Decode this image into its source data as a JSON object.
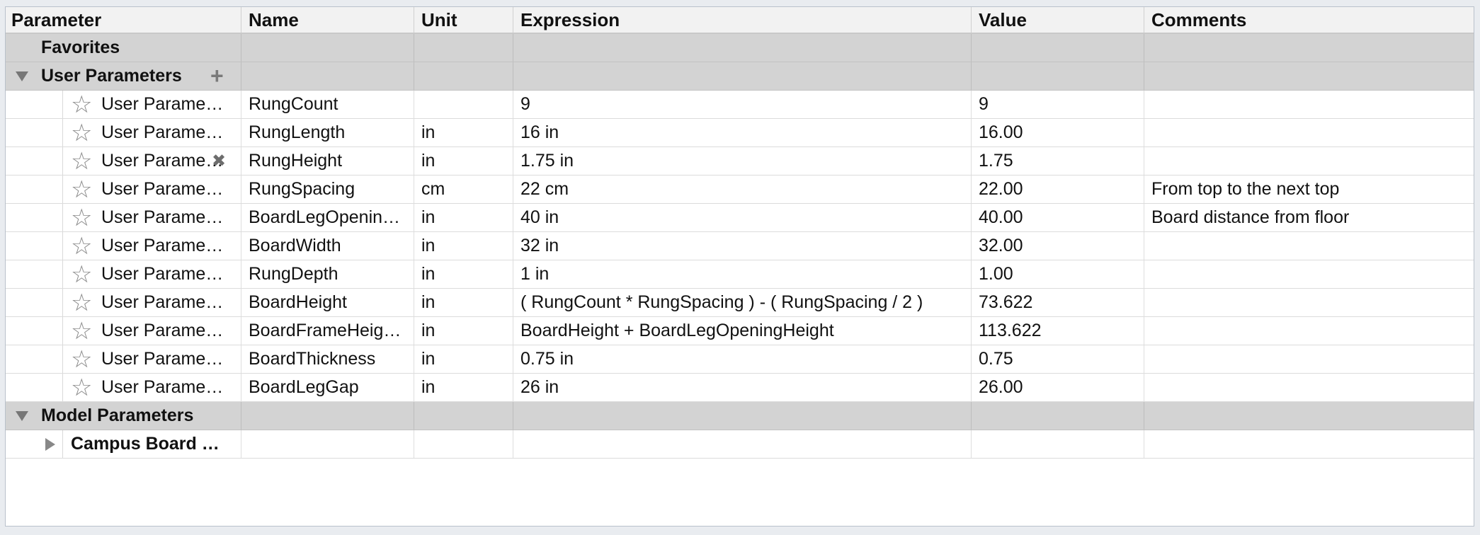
{
  "columns": {
    "parameter": "Parameter",
    "name": "Name",
    "unit": "Unit",
    "expression": "Expression",
    "value": "Value",
    "comments": "Comments"
  },
  "groups": {
    "favorites": "Favorites",
    "user_parameters": "User Parameters",
    "model_parameters": "Model Parameters"
  },
  "icons": {
    "add": "+",
    "star": "☆",
    "delete": "✖"
  },
  "rows": [
    {
      "param": "User Parame…",
      "name": "RungCount",
      "unit": "",
      "expression": "9",
      "value": "9",
      "comments": ""
    },
    {
      "param": "User Parame…",
      "name": "RungLength",
      "unit": "in",
      "expression": "16 in",
      "value": "16.00",
      "comments": ""
    },
    {
      "param": "User Parame…",
      "name": "RungHeight",
      "unit": "in",
      "expression": "1.75 in",
      "value": "1.75",
      "comments": ""
    },
    {
      "param": "User Parame…",
      "name": "RungSpacing",
      "unit": "cm",
      "expression": "22 cm",
      "value": "22.00",
      "comments": "From top to the next top"
    },
    {
      "param": "User Parame…",
      "name": "BoardLegOpenin…",
      "unit": "in",
      "expression": "40 in",
      "value": "40.00",
      "comments": "Board distance from floor"
    },
    {
      "param": "User Parame…",
      "name": "BoardWidth",
      "unit": "in",
      "expression": "32 in",
      "value": "32.00",
      "comments": ""
    },
    {
      "param": "User Parame…",
      "name": "RungDepth",
      "unit": "in",
      "expression": "1 in",
      "value": "1.00",
      "comments": ""
    },
    {
      "param": "User Parame…",
      "name": "BoardHeight",
      "unit": "in",
      "expression": "( RungCount * RungSpacing ) - ( RungSpacing / 2 )",
      "value": "73.622",
      "comments": ""
    },
    {
      "param": "User Parame…",
      "name": "BoardFrameHeig…",
      "unit": "in",
      "expression": "BoardHeight + BoardLegOpeningHeight",
      "value": "113.622",
      "comments": ""
    },
    {
      "param": "User Parame…",
      "name": "BoardThickness",
      "unit": "in",
      "expression": "0.75 in",
      "value": "0.75",
      "comments": ""
    },
    {
      "param": "User Parame…",
      "name": "BoardLegGap",
      "unit": "in",
      "expression": "26 in",
      "value": "26.00",
      "comments": ""
    }
  ],
  "model_children": [
    {
      "param": "Campus Board …"
    }
  ]
}
